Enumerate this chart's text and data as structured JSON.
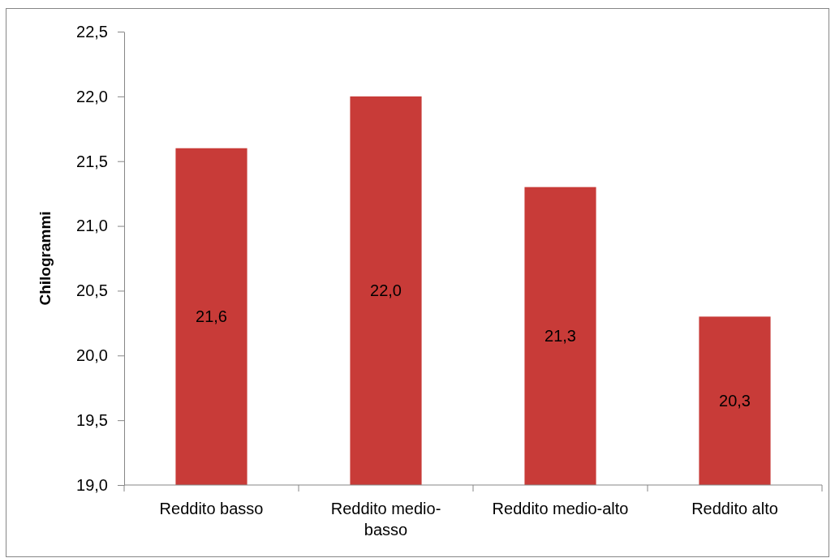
{
  "chart_data": {
    "type": "bar",
    "ylabel": "Chilogrammi",
    "categories": [
      "Reddito basso",
      "Reddito medio-basso",
      "Reddito medio-alto",
      "Reddito alto"
    ],
    "values": [
      21.6,
      22.0,
      21.3,
      20.3
    ],
    "value_labels": [
      "21,6",
      "22,0",
      "21,3",
      "20,3"
    ],
    "color": "#c83b38",
    "ylim": [
      19.0,
      22.5
    ],
    "yticks": [
      {
        "value": 19.0,
        "label": "19,0"
      },
      {
        "value": 19.5,
        "label": "19,5"
      },
      {
        "value": 20.0,
        "label": "20,0"
      },
      {
        "value": 20.5,
        "label": "20,5"
      },
      {
        "value": 21.0,
        "label": "21,0"
      },
      {
        "value": 21.5,
        "label": "21,5"
      },
      {
        "value": 22.0,
        "label": "22,0"
      },
      {
        "value": 22.5,
        "label": "22,5"
      }
    ],
    "grid": false
  }
}
